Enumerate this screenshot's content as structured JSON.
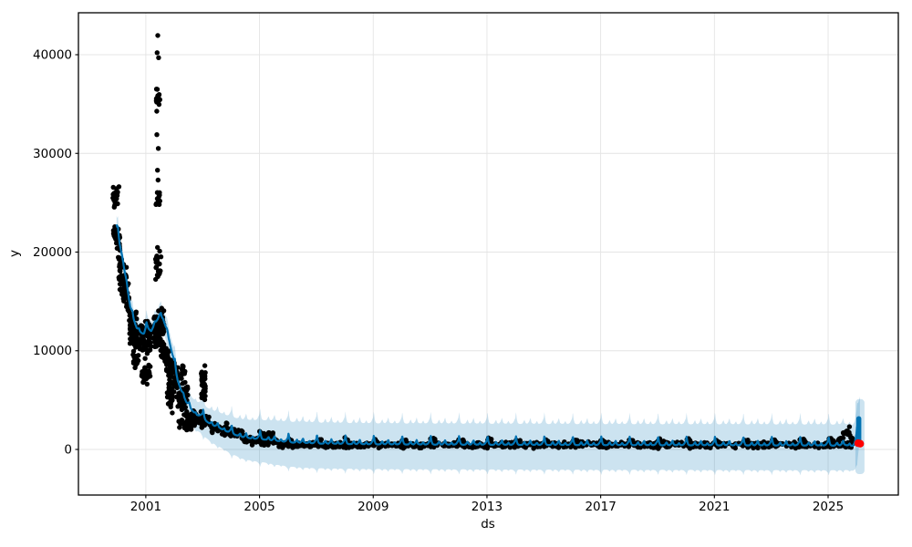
{
  "figure": {
    "bg": "#ffffff"
  },
  "axes": {
    "xlabel": "ds",
    "ylabel": "y",
    "xlim": [
      1998.63,
      2027.47
    ],
    "ylim": [
      -4620,
      44250
    ],
    "xticks": [
      {
        "value": 2001,
        "label": "2001"
      },
      {
        "value": 2005,
        "label": "2005"
      },
      {
        "value": 2009,
        "label": "2009"
      },
      {
        "value": 2013,
        "label": "2013"
      },
      {
        "value": 2017,
        "label": "2017"
      },
      {
        "value": 2021,
        "label": "2021"
      },
      {
        "value": 2025,
        "label": "2025"
      }
    ],
    "yticks": [
      {
        "value": 0,
        "label": "0"
      },
      {
        "value": 10000,
        "label": "10000"
      },
      {
        "value": 20000,
        "label": "20000"
      },
      {
        "value": 30000,
        "label": "30000"
      },
      {
        "value": 40000,
        "label": "40000"
      }
    ],
    "grid": true,
    "grid_color": "#e4e4e4",
    "spine_color": "#000000"
  },
  "chart_data": {
    "type": "line",
    "title": "",
    "xlabel": "ds",
    "ylabel": "y",
    "legend": "none",
    "description": "Prophet-style forecast: black observed scatter, blue forecast line (#0072B2) with light-blue uncertainty band, yearly seasonal spikes, red observed points at forecast horizon (~2026).",
    "line_color": "#0072B2",
    "band_color": "#0072B2",
    "band_opacity": 0.2,
    "point_color": "#000000",
    "future_point_color": "#ff0000",
    "forecast_trend_keypoints": [
      [
        1999.97,
        22400
      ],
      [
        2000.07,
        20800
      ],
      [
        2000.17,
        19500
      ],
      [
        2000.26,
        17800
      ],
      [
        2000.36,
        16100
      ],
      [
        2000.45,
        14300
      ],
      [
        2000.58,
        13000
      ],
      [
        2000.68,
        12200
      ],
      [
        2000.81,
        11800
      ],
      [
        2000.94,
        11500
      ],
      [
        2001.06,
        12200
      ],
      [
        2001.19,
        11900
      ],
      [
        2001.32,
        12600
      ],
      [
        2001.48,
        13400
      ],
      [
        2001.61,
        13100
      ],
      [
        2001.74,
        12000
      ],
      [
        2001.87,
        10300
      ],
      [
        2002.0,
        8500
      ],
      [
        2002.12,
        6900
      ],
      [
        2002.28,
        5600
      ],
      [
        2002.44,
        4600
      ],
      [
        2002.6,
        3950
      ],
      [
        2002.77,
        3400
      ],
      [
        2002.93,
        3300
      ],
      [
        2003.12,
        2800
      ],
      [
        2003.31,
        2400
      ],
      [
        2003.57,
        2100
      ],
      [
        2003.82,
        1750
      ],
      [
        2004.08,
        1450
      ],
      [
        2004.4,
        1150
      ],
      [
        2004.72,
        1000
      ],
      [
        2005.07,
        950
      ],
      [
        2005.5,
        800
      ],
      [
        2006.1,
        620
      ],
      [
        2007.1,
        500
      ],
      [
        2008.7,
        430
      ],
      [
        2010,
        410
      ],
      [
        2012,
        390
      ],
      [
        2015,
        360
      ],
      [
        2018,
        340
      ],
      [
        2020,
        330
      ],
      [
        2022,
        320
      ],
      [
        2024,
        310
      ],
      [
        2025.3,
        300
      ],
      [
        2025.6,
        340
      ],
      [
        2025.87,
        250
      ],
      [
        2025.95,
        500
      ],
      [
        2026.02,
        1300
      ],
      [
        2026.08,
        2600
      ],
      [
        2026.12,
        3150
      ]
    ],
    "seasonal_amplitude": 1000,
    "seasonal_pattern": [
      [
        0.0,
        0.55
      ],
      [
        0.02,
        1.0
      ],
      [
        0.05,
        0.45
      ],
      [
        0.08,
        0.18
      ],
      [
        0.12,
        0.1
      ],
      [
        0.18,
        0.08
      ],
      [
        0.25,
        0.12
      ],
      [
        0.32,
        0.4
      ],
      [
        0.36,
        0.15
      ],
      [
        0.42,
        0.1
      ],
      [
        0.48,
        0.25
      ],
      [
        0.53,
        0.55
      ],
      [
        0.57,
        0.18
      ],
      [
        0.63,
        0.1
      ],
      [
        0.7,
        0.12
      ],
      [
        0.76,
        0.32
      ],
      [
        0.8,
        0.12
      ],
      [
        0.86,
        0.1
      ],
      [
        0.92,
        0.18
      ],
      [
        0.96,
        0.35
      ],
      [
        1.0,
        0.55
      ]
    ],
    "band_upper_halfwidth_keypoints": [
      [
        1999.97,
        750
      ],
      [
        2001.0,
        900
      ],
      [
        2002.0,
        1100
      ],
      [
        2002.8,
        1300
      ],
      [
        2003.5,
        1500
      ],
      [
        2004.3,
        1750
      ],
      [
        2005.5,
        2000
      ],
      [
        2006.5,
        2100
      ],
      [
        2026.12,
        2100
      ]
    ],
    "band_lower_halfwidth_keypoints": [
      [
        1999.97,
        800
      ],
      [
        2001.0,
        950
      ],
      [
        2002.0,
        1200
      ],
      [
        2002.8,
        1450
      ],
      [
        2003.5,
        1700
      ],
      [
        2004.3,
        2000
      ],
      [
        2005.5,
        2250
      ],
      [
        2006.5,
        2350
      ],
      [
        2026.12,
        2350
      ]
    ],
    "band_upper_seasonal_extra": 350,
    "band_lower_seasonal_extra": 1600,
    "end_band_spike": {
      "t0": 2025.96,
      "t1": 2026.28,
      "top": 5100,
      "bottom": -2500
    },
    "end_forecast_bar": {
      "t": 2026.08,
      "v0": 950,
      "v1": 3120
    },
    "observed_clusters": [
      {
        "t0": 1999.84,
        "t1": 2000.06,
        "v0": 25700,
        "v1": 25700,
        "spread": 1600,
        "n": 26
      },
      {
        "t0": 1999.84,
        "t1": 2000.1,
        "v0": 22200,
        "v1": 21000,
        "spread": 1400,
        "n": 30
      },
      {
        "t0": 2000.03,
        "t1": 2000.42,
        "v0": 18800,
        "v1": 15000,
        "spread": 3000,
        "n": 80
      },
      {
        "t0": 2000.42,
        "t1": 2000.74,
        "v0": 12700,
        "v1": 11400,
        "spread": 2600,
        "n": 70
      },
      {
        "t0": 2000.55,
        "t1": 2000.74,
        "v0": 8800,
        "v1": 8800,
        "spread": 1200,
        "n": 15
      },
      {
        "t0": 2000.74,
        "t1": 2001.19,
        "v0": 11300,
        "v1": 11300,
        "spread": 2200,
        "n": 85
      },
      {
        "t0": 2000.84,
        "t1": 2001.16,
        "v0": 7400,
        "v1": 7900,
        "spread": 1500,
        "n": 35
      },
      {
        "t0": 2001.36,
        "t1": 2001.5,
        "v0": 35500,
        "v1": 35500,
        "spread": 2000,
        "n": 16
      },
      {
        "t0": 2001.36,
        "t1": 2001.5,
        "v0": 25300,
        "v1": 25300,
        "spread": 1700,
        "n": 12
      },
      {
        "t0": 2001.33,
        "t1": 2001.55,
        "v0": 19000,
        "v1": 19000,
        "spread": 3000,
        "n": 22
      },
      {
        "t0": 2001.26,
        "t1": 2001.64,
        "v0": 12300,
        "v1": 12300,
        "spread": 2400,
        "n": 85
      },
      {
        "t0": 2001.51,
        "t1": 2002.15,
        "v0": 10800,
        "v1": 6300,
        "spread": 2600,
        "n": 95
      },
      {
        "t0": 2001.74,
        "t1": 2001.96,
        "v0": 5600,
        "v1": 5600,
        "spread": 2200,
        "n": 30
      },
      {
        "t0": 2002.15,
        "t1": 2002.48,
        "v0": 5400,
        "v1": 5000,
        "spread": 2400,
        "n": 50
      },
      {
        "t0": 2002.26,
        "t1": 2002.38,
        "v0": 7900,
        "v1": 7900,
        "spread": 1500,
        "n": 12
      },
      {
        "t0": 2002.15,
        "t1": 2002.62,
        "v0": 2500,
        "v1": 2500,
        "spread": 900,
        "n": 25
      },
      {
        "t0": 2002.51,
        "t1": 2002.88,
        "v0": 3300,
        "v1": 3100,
        "spread": 1200,
        "n": 40
      },
      {
        "t0": 2002.94,
        "t1": 2003.1,
        "v0": 6000,
        "v1": 6000,
        "spread": 3800,
        "n": 34
      },
      {
        "t0": 2002.88,
        "t1": 2003.31,
        "v0": 2800,
        "v1": 2700,
        "spread": 900,
        "n": 35
      },
      {
        "t0": 2003.31,
        "t1": 2003.89,
        "v0": 2150,
        "v1": 2000,
        "spread": 820,
        "n": 42
      },
      {
        "t0": 2003.89,
        "t1": 2004.46,
        "v0": 1750,
        "v1": 1500,
        "spread": 730,
        "n": 42
      },
      {
        "t0": 2004.46,
        "t1": 2005.65,
        "v0": 1100,
        "v1": 800,
        "spread": 640,
        "n": 75
      },
      {
        "t0": 2005.0,
        "t1": 2005.5,
        "v0": 1400,
        "v1": 1300,
        "spread": 700,
        "n": 28
      },
      {
        "t0": 2025.32,
        "t1": 2025.64,
        "v0": 600,
        "v1": 1950,
        "spread": 540,
        "n": 18
      },
      {
        "t0": 2025.64,
        "t1": 2025.9,
        "v0": 1950,
        "v1": 650,
        "spread": 540,
        "n": 14
      }
    ],
    "observed_singles": [
      [
        2001.42,
        41950
      ],
      [
        2001.4,
        40200
      ],
      [
        2001.45,
        39700
      ],
      [
        2001.39,
        31900
      ],
      [
        2001.44,
        30500
      ],
      [
        2001.41,
        28300
      ],
      [
        2001.43,
        27300
      ],
      [
        2000.55,
        9600
      ],
      [
        2025.75,
        2300
      ]
    ],
    "observed_flat_band": {
      "t0": 2005.65,
      "t1": 2025.85,
      "v": 460,
      "spread": 420,
      "n": 860
    },
    "observed_year_bumps": {
      "years": [
        2006,
        2007,
        2008,
        2009,
        2010,
        2011,
        2012,
        2013,
        2014,
        2015,
        2016,
        2017,
        2018,
        2019,
        2020,
        2021,
        2022,
        2023,
        2024,
        2025
      ],
      "dt": 0.18,
      "v": 830,
      "spread": 460,
      "n_each": 9
    },
    "future_actual_points": [
      [
        2026.06,
        640
      ],
      [
        2026.13,
        580
      ]
    ]
  }
}
